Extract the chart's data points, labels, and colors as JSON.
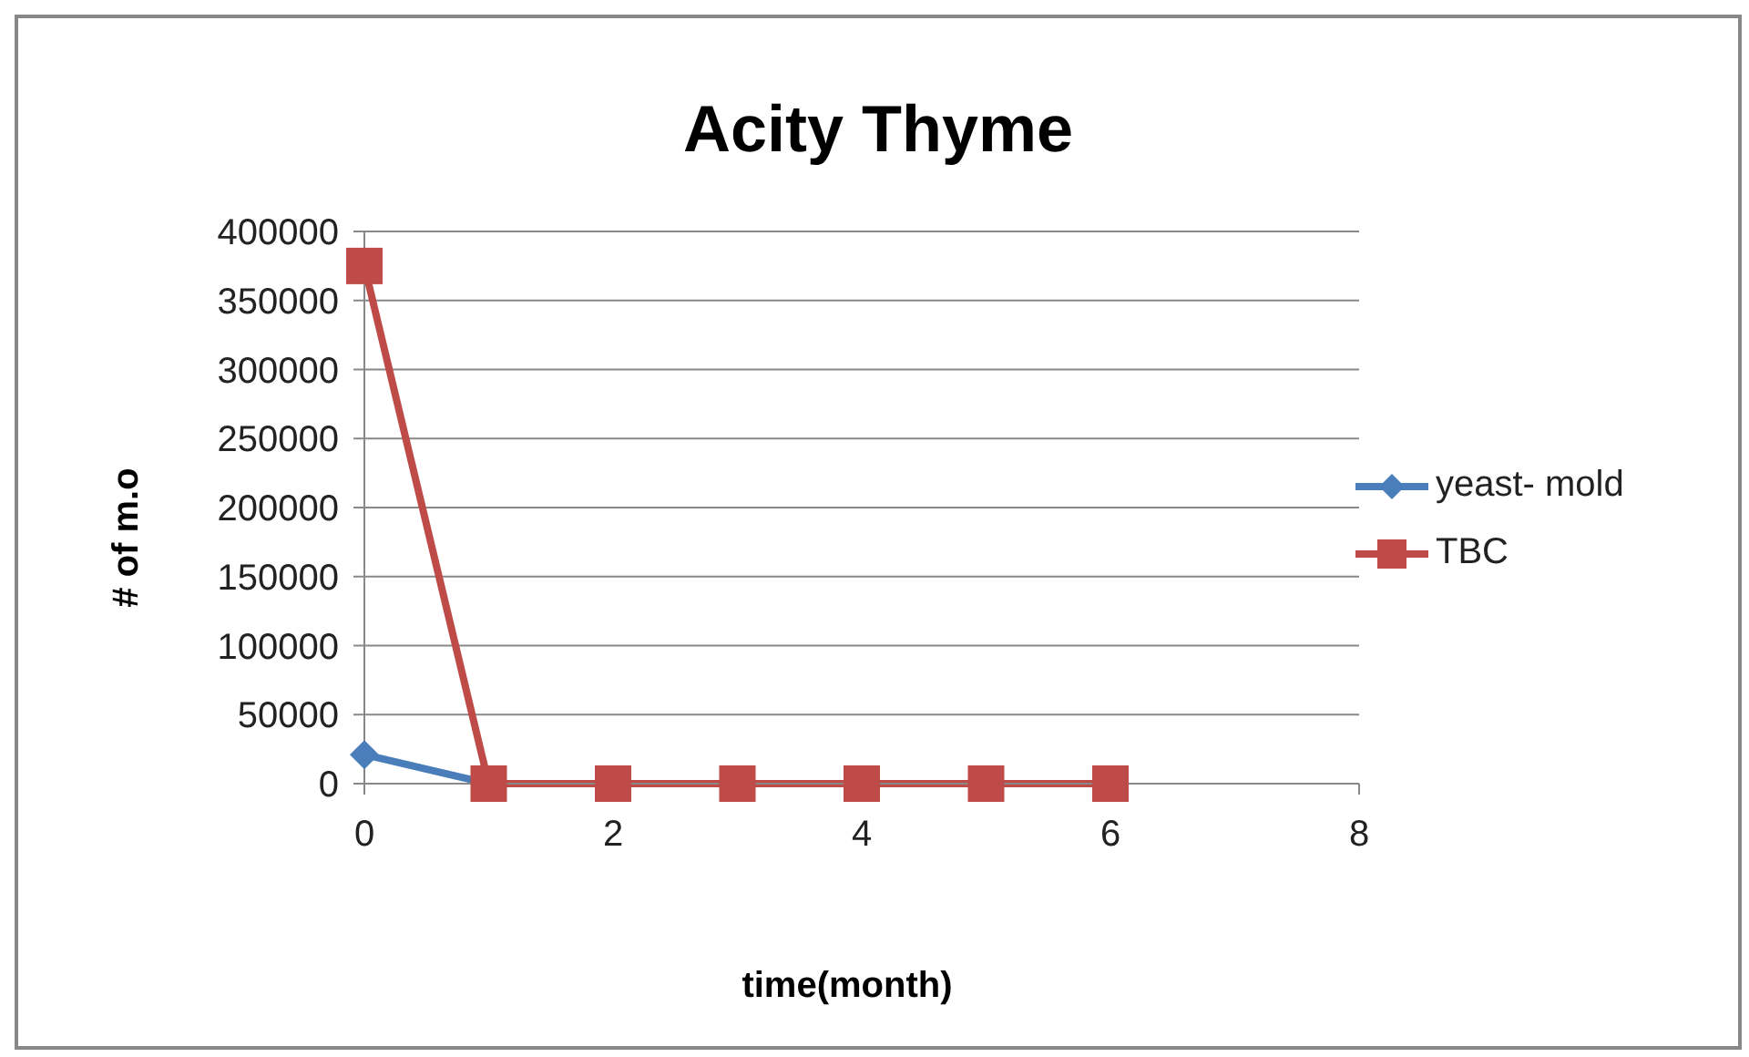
{
  "chart_data": {
    "type": "line",
    "title": "Acity Thyme",
    "xlabel": "time(month)",
    "ylabel": "# of m.o",
    "xlim": [
      0,
      8
    ],
    "xticks": [
      0,
      2,
      4,
      6,
      8
    ],
    "ylim": [
      0,
      400000
    ],
    "yticks": [
      0,
      50000,
      100000,
      150000,
      200000,
      250000,
      300000,
      350000,
      400000
    ],
    "grid": "y",
    "legend": "right",
    "line_style": "solid",
    "series": [
      {
        "name": "yeast- mold",
        "color": "#4a7ebb",
        "marker": "diamond",
        "x": [
          0,
          1
        ],
        "values": [
          21000,
          0
        ]
      },
      {
        "name": "TBC",
        "color": "#be4b48",
        "marker": "square",
        "x": [
          0,
          1,
          2,
          3,
          4,
          5,
          6
        ],
        "values": [
          375000,
          0,
          0,
          0,
          0,
          0,
          0
        ]
      }
    ]
  }
}
